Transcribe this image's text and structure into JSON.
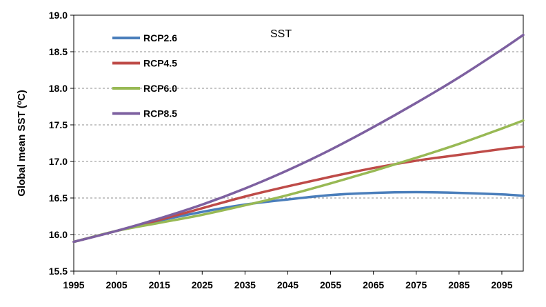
{
  "chart_data": {
    "type": "line",
    "title": "",
    "annotation": "SST",
    "xlabel": "",
    "ylabel": "Global mean SST (",
    "ylabel_sup": "o",
    "ylabel_unit": "C)",
    "xlim": [
      1995,
      2100
    ],
    "ylim": [
      15.5,
      19.0
    ],
    "xticks": [
      "1995",
      "2005",
      "2015",
      "2025",
      "2035",
      "2045",
      "2055",
      "2065",
      "2075",
      "2085",
      "2095"
    ],
    "yticks": [
      "15.5",
      "16.0",
      "16.5",
      "17.0",
      "17.5",
      "18.0",
      "18.5",
      "19.0"
    ],
    "grid": "horizontal-dashed",
    "legend_position": "top-left",
    "x": [
      1995,
      2005,
      2015,
      2025,
      2035,
      2045,
      2055,
      2065,
      2075,
      2085,
      2095,
      2100
    ],
    "series": [
      {
        "name": "RCP2.6",
        "color": "#4a7ebb",
        "values": [
          15.9,
          16.05,
          16.19,
          16.31,
          16.41,
          16.48,
          16.54,
          16.57,
          16.58,
          16.57,
          16.55,
          16.53
        ]
      },
      {
        "name": "RCP4.5",
        "color": "#be4b48",
        "values": [
          15.9,
          16.05,
          16.2,
          16.36,
          16.52,
          16.66,
          16.79,
          16.91,
          17.01,
          17.09,
          17.17,
          17.2
        ]
      },
      {
        "name": "RCP6.0",
        "color": "#98b954",
        "values": [
          15.9,
          16.05,
          16.16,
          16.27,
          16.4,
          16.54,
          16.7,
          16.87,
          17.05,
          17.24,
          17.45,
          17.56
        ]
      },
      {
        "name": "RCP8.5",
        "color": "#7d60a0",
        "values": [
          15.9,
          16.05,
          16.22,
          16.41,
          16.63,
          16.88,
          17.16,
          17.47,
          17.8,
          18.15,
          18.53,
          18.73
        ]
      }
    ]
  }
}
